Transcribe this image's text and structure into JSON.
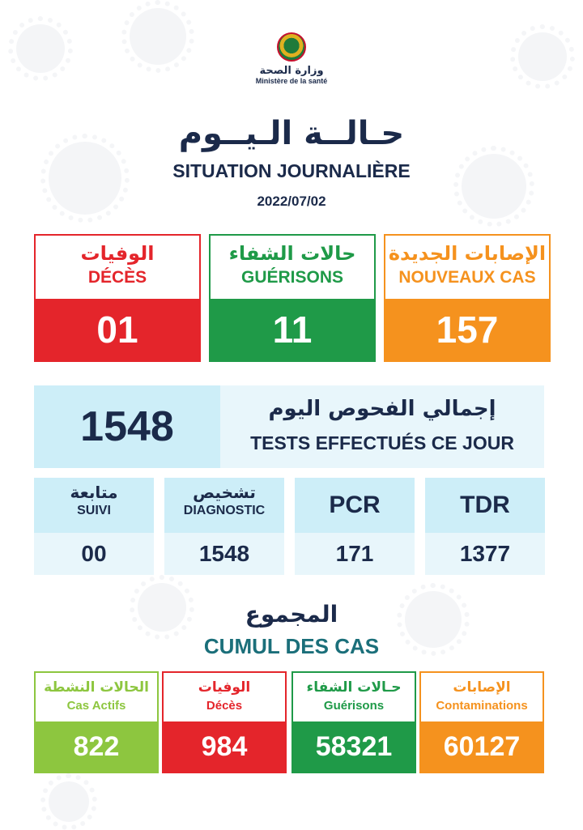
{
  "header": {
    "ministry_ar": "وزارة الصحة",
    "ministry_fr": "Ministère de la santé"
  },
  "title": {
    "ar": "حـالــة الـيــوم",
    "fr": "SITUATION JOURNALIÈRE",
    "date": "2022/07/02"
  },
  "daily": [
    {
      "ar": "الوفيات",
      "fr": "DÉCÈS",
      "value": "01",
      "color": "#e4252b"
    },
    {
      "ar": "حالات الشفاء",
      "fr": "GUÉRISONS",
      "value": "11",
      "color": "#1f9a48"
    },
    {
      "ar": "الإصابات الجديدة",
      "fr": "NOUVEAUX CAS",
      "value": "157",
      "color": "#f5921e"
    }
  ],
  "tests": {
    "value": "1548",
    "ar": "إجمالي الفحوص اليوم",
    "fr": "TESTS EFFECTUÉS CE JOUR"
  },
  "subtests": [
    {
      "ar": "متابعة",
      "fr": "SUIVI",
      "value": "00"
    },
    {
      "ar": "تشخيص",
      "fr": "DIAGNOSTIC",
      "value": "1548"
    },
    {
      "label": "PCR",
      "value": "171"
    },
    {
      "label": "TDR",
      "value": "1377"
    }
  ],
  "cumulative": {
    "ar": "المجموع",
    "fr": "CUMUL DES CAS",
    "items": [
      {
        "ar": "الحالات النشطة",
        "fr": "Cas Actifs",
        "value": "822",
        "color": "#8dc63f"
      },
      {
        "ar": "الوفيات",
        "fr": "Décès",
        "value": "984",
        "color": "#e4252b"
      },
      {
        "ar": "حـالات الشفاء",
        "fr": "Guérisons",
        "value": "58321",
        "color": "#1f9a48"
      },
      {
        "ar": "الإصابات",
        "fr": "Contaminations",
        "value": "60127",
        "color": "#f5921e"
      }
    ]
  }
}
